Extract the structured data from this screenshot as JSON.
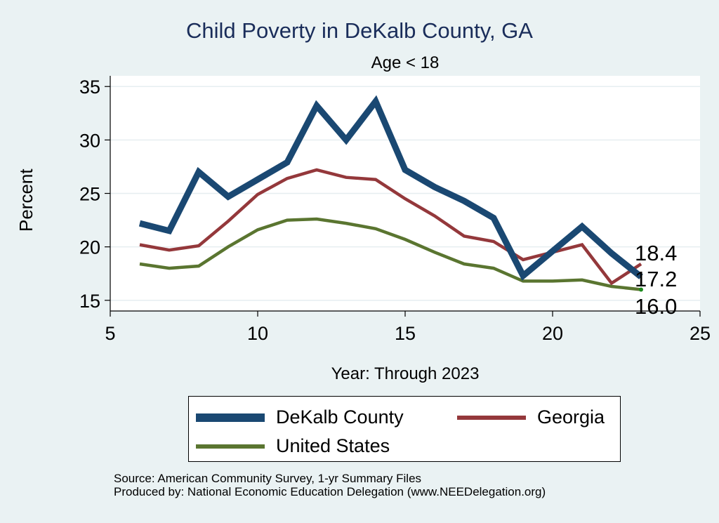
{
  "chart_data": {
    "type": "line",
    "title": "Child Poverty in DeKalb County, GA",
    "subtitle": "Age < 18",
    "xlabel": "Year: Through 2023",
    "ylabel": "Percent",
    "xlim": [
      5,
      25
    ],
    "ylim": [
      14,
      36
    ],
    "xticks": [
      5,
      10,
      15,
      20,
      25
    ],
    "yticks": [
      15,
      20,
      25,
      30,
      35
    ],
    "grid": true,
    "legend_position": "bottom",
    "series": [
      {
        "name": "DeKalb County",
        "color": "#1a4872",
        "x": [
          6,
          7,
          8,
          9,
          10,
          11,
          12,
          13,
          14,
          15,
          16,
          17,
          18,
          19,
          20,
          21,
          22,
          23
        ],
        "values": [
          22.2,
          21.5,
          27.0,
          24.7,
          26.3,
          27.9,
          33.2,
          30.0,
          33.6,
          27.2,
          25.6,
          24.3,
          22.7,
          17.3,
          19.6,
          21.9,
          19.4,
          17.2
        ],
        "end_label": "17.2"
      },
      {
        "name": "Georgia",
        "color": "#94383b",
        "x": [
          6,
          7,
          8,
          9,
          10,
          11,
          12,
          13,
          14,
          15,
          16,
          17,
          18,
          19,
          20,
          21,
          22,
          23
        ],
        "values": [
          20.2,
          19.7,
          20.1,
          22.4,
          24.9,
          26.4,
          27.2,
          26.5,
          26.3,
          24.5,
          22.9,
          21.0,
          20.5,
          18.8,
          19.5,
          20.2,
          16.6,
          18.4
        ],
        "end_label": "18.4"
      },
      {
        "name": "United States",
        "color": "#5a7530",
        "x": [
          6,
          7,
          8,
          9,
          10,
          11,
          12,
          13,
          14,
          15,
          16,
          17,
          18,
          19,
          20,
          21,
          22,
          23
        ],
        "values": [
          18.4,
          18.0,
          18.2,
          20.0,
          21.6,
          22.5,
          22.6,
          22.2,
          21.7,
          20.7,
          19.5,
          18.4,
          18.0,
          16.8,
          16.8,
          16.9,
          16.3,
          16.0
        ],
        "end_label": "16.0"
      }
    ]
  },
  "legend": {
    "items": [
      "DeKalb County",
      "Georgia",
      "United States"
    ]
  },
  "footer": {
    "source": "Source: American Community Survey, 1-yr Summary Files",
    "produced_by": "Produced by: National Economic Education Delegation (www.NEEDelegation.org)"
  }
}
